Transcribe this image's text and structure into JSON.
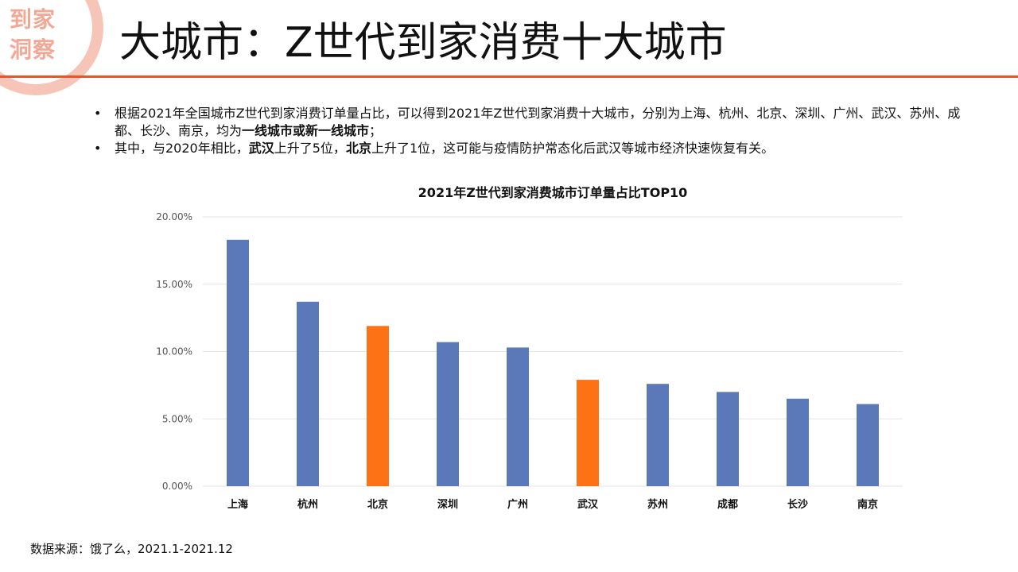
{
  "logo": {
    "line1": "到家",
    "line2": "洞察"
  },
  "title": "大城市：Z世代到家消费十大城市",
  "bullets": {
    "b1_p1": "根据2021年全国城市Z世代到家消费订单量占比，可以得到2021年Z世代到家消费十大城市，分别为上海、杭州、北京、深圳、广州、武汉、苏州、成都、长沙、南京，均为",
    "b1_bold": "一线城市或新一线城市",
    "b1_p2": "；",
    "b2_p1": "其中，与2020年相比，",
    "b2_bold1": "武汉",
    "b2_p2": "上升了5位，",
    "b2_bold2": "北京",
    "b2_p3": "上升了1位，这可能与疫情防护常态化后武汉等城市经济快速恢复有关。",
    "dot": "•"
  },
  "chart_data": {
    "type": "bar",
    "title": "2021年Z世代到家消费城市订单量占比TOP10",
    "categories": [
      "上海",
      "杭州",
      "北京",
      "深圳",
      "广州",
      "武汉",
      "苏州",
      "成都",
      "长沙",
      "南京"
    ],
    "values": [
      18.3,
      13.7,
      11.9,
      10.7,
      10.3,
      7.9,
      7.6,
      7.0,
      6.5,
      6.1
    ],
    "highlight": [
      false,
      false,
      true,
      false,
      false,
      true,
      false,
      false,
      false,
      false
    ],
    "ylim": [
      0,
      20
    ],
    "yticks": [
      0,
      5,
      10,
      15,
      20
    ],
    "ytick_labels": [
      "0.00%",
      "5.00%",
      "10.00%",
      "15.00%",
      "20.00%"
    ],
    "xlabel": "",
    "ylabel": "",
    "grid": true,
    "colors": {
      "default": "#5b78b8",
      "highlight": "#fd7215",
      "grid": "#e6e6e6"
    }
  },
  "source": "数据来源：饿了么，2021.1-2021.12"
}
